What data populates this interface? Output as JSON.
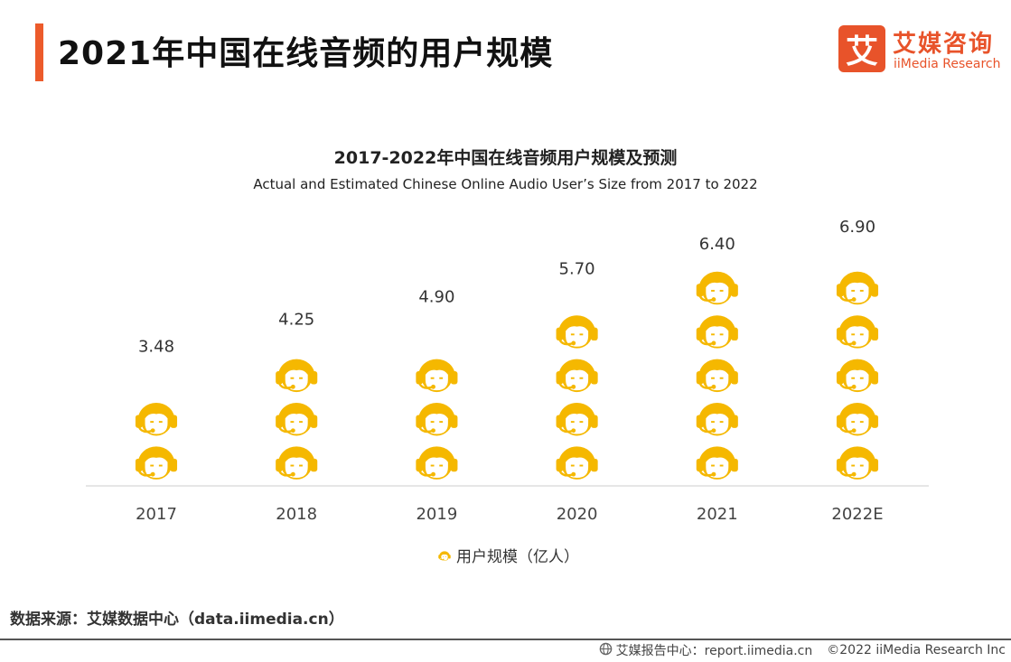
{
  "header": {
    "title": "2021年中国在线音频的用户规模",
    "logo_mark": "艾",
    "logo_cn": "艾媒咨询",
    "logo_en": "iiMedia Research"
  },
  "colors": {
    "accent": "#ec5b2b",
    "icon": "#f5b800",
    "axis": "#cccccc"
  },
  "chart_data": {
    "type": "bar",
    "title": "2017-2022年中国在线音频用户规模及预测",
    "subtitle": "Actual and Estimated Chinese Online Audio User’s Size from 2017 to 2022",
    "categories": [
      "2017",
      "2018",
      "2019",
      "2020",
      "2021",
      "2022E"
    ],
    "series": [
      {
        "name": "用户规模（亿人）",
        "values": [
          3.48,
          4.25,
          4.9,
          5.7,
          6.4,
          6.9
        ]
      }
    ],
    "value_labels": [
      "3.48",
      "4.25",
      "4.90",
      "5.70",
      "6.40",
      "6.90"
    ],
    "unit_per_icon": 1.25,
    "ylim": [
      0,
      6.9
    ],
    "legend_position": "bottom",
    "mark": "headset-person-icon"
  },
  "source": "数据来源：艾媒数据中心（data.iimedia.cn）",
  "footer": {
    "report": "艾媒报告中心：report.iimedia.cn",
    "copyright": "©2022  iiMedia Research  Inc"
  }
}
